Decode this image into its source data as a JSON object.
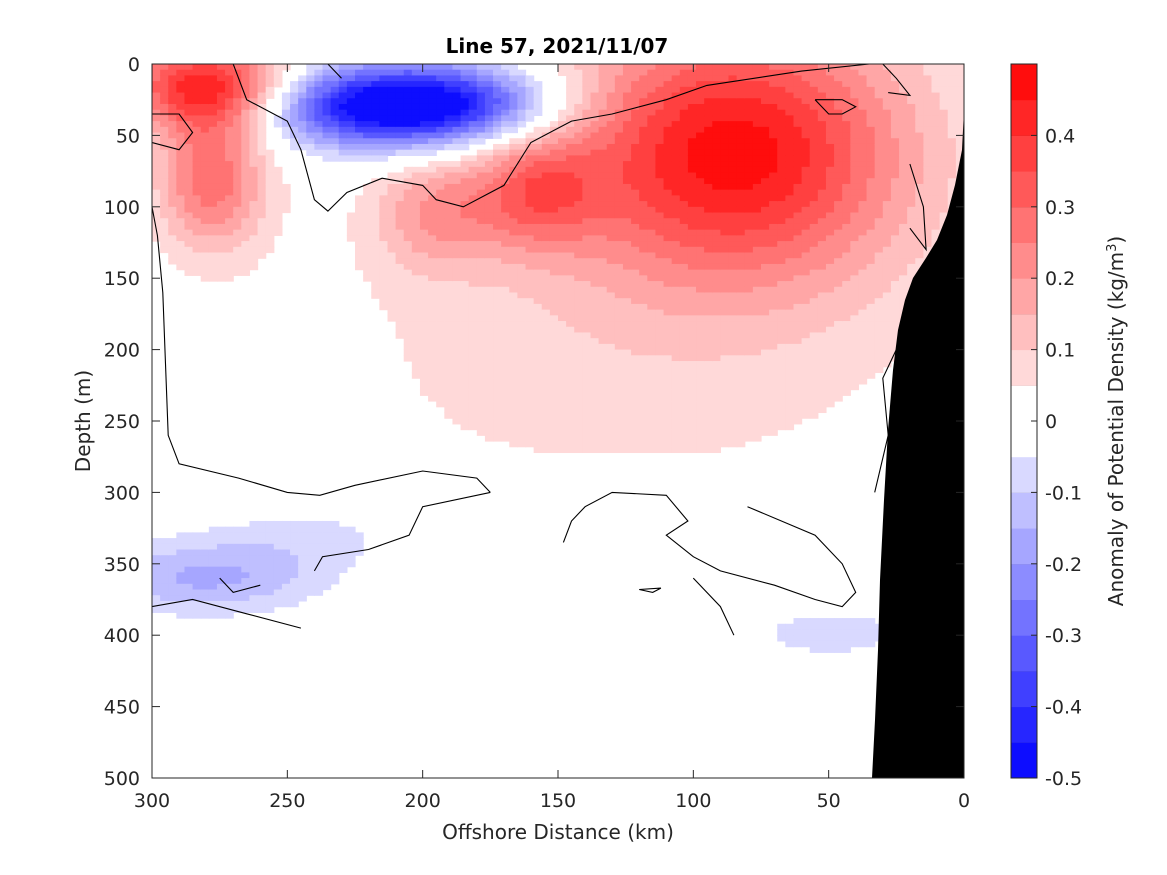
{
  "chart_data": {
    "type": "heatmap",
    "title": "Line 57, 2021/11/07",
    "xlabel": "Offshore Distance (km)",
    "ylabel": "Depth (m)",
    "colorbar_label": "Anomaly of Potential Density (kg/m",
    "colorbar_label_superscript": "3",
    "colorbar_label_end": ")",
    "xlim": [
      300,
      0
    ],
    "ylim": [
      0,
      500
    ],
    "x_reversed": true,
    "y_reversed": true,
    "x_ticks": [
      300,
      250,
      200,
      150,
      100,
      50,
      0
    ],
    "y_ticks": [
      0,
      50,
      100,
      150,
      200,
      250,
      300,
      350,
      400,
      450,
      500
    ],
    "clim": [
      -0.5,
      0.5
    ],
    "colorbar_levels": 20,
    "colorbar_ticks": [
      0.4,
      0.3,
      0.2,
      0.1,
      0,
      -0.1,
      -0.2,
      -0.3,
      -0.4,
      -0.5
    ],
    "color_low": "#0000ff",
    "color_mid": "#ffffff",
    "color_high": "#ff0000",
    "bathymetry_color": "#000000",
    "contour_level": 0,
    "anomaly_features": [
      {
        "name": "surface positive core",
        "x": 280,
        "y": 15,
        "value": 0.42
      },
      {
        "name": "subsurface positive core",
        "x": 278,
        "y": 80,
        "value": 0.28
      },
      {
        "name": "negative core",
        "x": 222,
        "y": 30,
        "value": -0.38
      },
      {
        "name": "negative core",
        "x": 188,
        "y": 28,
        "value": -0.36
      },
      {
        "name": "positive patch",
        "x": 195,
        "y": 105,
        "value": 0.17
      },
      {
        "name": "positive patch",
        "x": 158,
        "y": 90,
        "value": 0.22
      },
      {
        "name": "positive core",
        "x": 85,
        "y": 60,
        "value": 0.46
      },
      {
        "name": "broad positive",
        "x": 130,
        "y": 200,
        "value": 0.07
      },
      {
        "name": "deep negative",
        "x": 280,
        "y": 360,
        "value": -0.16
      },
      {
        "name": "deep negative",
        "x": 240,
        "y": 330,
        "value": -0.07
      },
      {
        "name": "deep negative",
        "x": 130,
        "y": 318,
        "value": -0.08
      },
      {
        "name": "deep negative",
        "x": 50,
        "y": 398,
        "value": -0.07
      }
    ]
  }
}
